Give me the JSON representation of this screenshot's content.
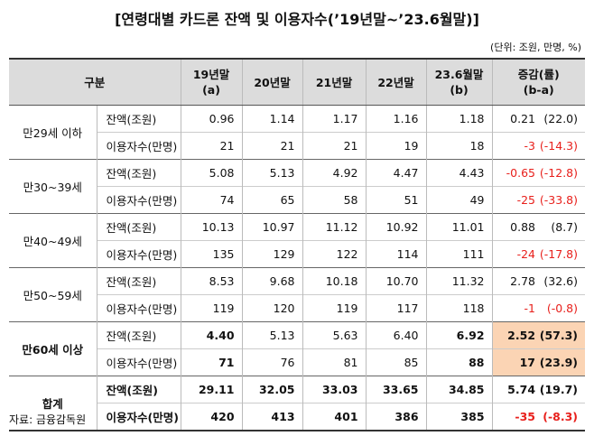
{
  "title": "[연령대별 카드론 잔액 및 이용자수(’19년말~’23.6월말)]",
  "unit": "(단위: 조원, 만명, %)",
  "table": {
    "header": [
      [
        "구분"
      ],
      [
        "19년말",
        "(a)"
      ],
      [
        "20년말"
      ],
      [
        "21년말"
      ],
      [
        "22년말"
      ],
      [
        "23.6월말",
        "(b)"
      ],
      [
        "증감(률)",
        "(b-a)"
      ]
    ],
    "groups": [
      {
        "label": "만29세 이하",
        "rows": [
          {
            "item": "잔액(조원)",
            "values": [
              "0.96",
              "1.14",
              "1.17",
              "1.16",
              "1.18"
            ],
            "change": "0.21",
            "rate": "(22.0)"
          },
          {
            "item": "이용자수(만명)",
            "values": [
              "21",
              "21",
              "21",
              "19",
              "18"
            ],
            "change": "-3",
            "rate": "(-14.3)"
          }
        ]
      },
      {
        "label": "만30~39세",
        "rows": [
          {
            "item": "잔액(조원)",
            "values": [
              "5.08",
              "5.13",
              "4.92",
              "4.47",
              "4.43"
            ],
            "change": "-0.65",
            "rate": "(-12.8)"
          },
          {
            "item": "이용자수(만명)",
            "values": [
              "74",
              "65",
              "58",
              "51",
              "49"
            ],
            "change": "-25",
            "rate": "(-33.8)"
          }
        ]
      },
      {
        "label": "만40~49세",
        "rows": [
          {
            "item": "잔액(조원)",
            "values": [
              "10.13",
              "10.97",
              "11.12",
              "10.92",
              "11.01"
            ],
            "change": "0.88",
            "rate": "(8.7)"
          },
          {
            "item": "이용자수(만명)",
            "values": [
              "135",
              "129",
              "122",
              "114",
              "111"
            ],
            "change": "-24",
            "rate": "(-17.8)"
          }
        ]
      },
      {
        "label": "만50~59세",
        "rows": [
          {
            "item": "잔액(조원)",
            "values": [
              "8.53",
              "9.68",
              "10.18",
              "10.70",
              "11.32"
            ],
            "change": "2.78",
            "rate": "(32.6)"
          },
          {
            "item": "이용자수(만명)",
            "values": [
              "119",
              "120",
              "119",
              "117",
              "118"
            ],
            "change": "-1",
            "rate": "(-0.8)"
          }
        ]
      },
      {
        "label": "만60세 이상",
        "rows": [
          {
            "item": "잔액(조원)",
            "values": [
              "4.40",
              "5.13",
              "5.63",
              "6.40",
              "6.92"
            ],
            "change": "2.52",
            "rate": "(57.3)"
          },
          {
            "item": "이용자수(만명)",
            "values": [
              "71",
              "76",
              "81",
              "85",
              "88"
            ],
            "change": "17",
            "rate": "(23.9)"
          }
        ]
      },
      {
        "label": "합계",
        "rows": [
          {
            "item": "잔액(조원)",
            "values": [
              "29.11",
              "32.05",
              "33.03",
              "33.65",
              "34.85"
            ],
            "change": "5.74",
            "rate": "(19.7)"
          },
          {
            "item": "이용자수(만명)",
            "values": [
              "420",
              "413",
              "401",
              "386",
              "385"
            ],
            "change": "-35",
            "rate": "(-8.3)"
          }
        ]
      }
    ]
  },
  "source": "자료: 금융감독원"
}
